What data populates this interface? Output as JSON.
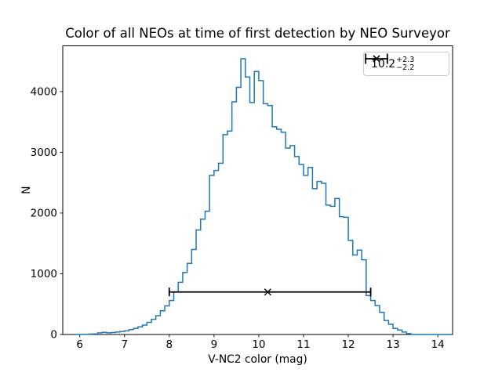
{
  "chart_data": {
    "type": "histogram",
    "style": "step",
    "title": "Color of all NEOs at time of first detection by NEO Surveyor",
    "xlabel": "V-NC2 color (mag)",
    "ylabel": "N",
    "xlim": [
      5.62,
      14.33
    ],
    "ylim": [
      0,
      4753
    ],
    "xticks": [
      6,
      7,
      8,
      9,
      10,
      11,
      12,
      13,
      14
    ],
    "yticks": [
      0,
      1000,
      2000,
      3000,
      4000
    ],
    "grid": false,
    "line_color": "#1f77b4",
    "bin_start": 5.9,
    "bin_width": 0.1,
    "counts": [
      0,
      2,
      4,
      6,
      10,
      25,
      35,
      28,
      32,
      40,
      50,
      60,
      80,
      100,
      125,
      155,
      200,
      250,
      310,
      390,
      470,
      560,
      700,
      860,
      1020,
      1170,
      1400,
      1720,
      1900,
      2030,
      2620,
      2700,
      2820,
      3290,
      3350,
      3830,
      4070,
      4540,
      4240,
      3820,
      4330,
      4180,
      3800,
      3770,
      3420,
      3380,
      3330,
      3070,
      3110,
      2930,
      2800,
      2620,
      2750,
      2400,
      2520,
      2490,
      2130,
      2110,
      2240,
      1940,
      1930,
      1550,
      1310,
      1390,
      1230,
      640,
      560,
      475,
      365,
      230,
      170,
      100,
      75,
      40,
      15,
      0,
      0,
      0,
      0,
      0,
      0,
      0,
      0,
      0
    ],
    "errorbar": {
      "center": 10.2,
      "err_plus": 2.3,
      "err_minus": 2.2,
      "y": 700,
      "marker": "x",
      "color": "#000000"
    },
    "legend_position": "upper right"
  },
  "legend": {
    "value": "10.2",
    "plus": "+2.3",
    "minus": "−2.2"
  }
}
